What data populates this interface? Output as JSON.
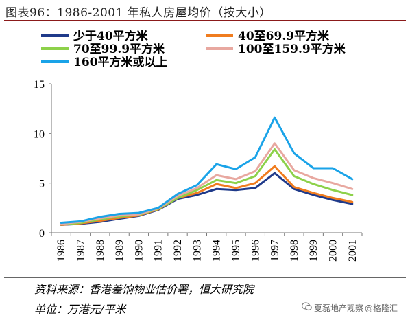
{
  "header": {
    "title": "图表96：1986-2001 年私人房屋均价（按大小）"
  },
  "footer": {
    "source": "资料来源：香港差饷物业估价署，恒大研究院",
    "unit": "单位：万港元/平米",
    "watermark_left": "夏磊地产观察",
    "watermark_right": "@格隆汇"
  },
  "icons": {
    "watermark": "wechat-icon"
  },
  "chart_data": {
    "type": "line",
    "title": "",
    "xlabel": "",
    "ylabel": "",
    "ylim": [
      0,
      15
    ],
    "yticks": [
      0,
      5,
      10,
      15
    ],
    "grid": false,
    "legend_position": "top",
    "x": [
      "1986",
      "1987",
      "1988",
      "1989",
      "1990",
      "1991",
      "1992",
      "1993",
      "1994",
      "1995",
      "1996",
      "1997",
      "1998",
      "1999",
      "2000",
      "2001"
    ],
    "series": [
      {
        "name": "少于40平方米",
        "color": "#1f3a8a",
        "values": [
          0.8,
          0.9,
          1.1,
          1.4,
          1.7,
          2.3,
          3.4,
          3.8,
          4.4,
          4.3,
          4.5,
          6.0,
          4.4,
          3.8,
          3.3,
          2.9
        ]
      },
      {
        "name": "40至69.9平方米",
        "color": "#f07c1f",
        "values": [
          0.8,
          0.95,
          1.2,
          1.5,
          1.75,
          2.35,
          3.5,
          4.0,
          4.9,
          4.5,
          5.0,
          6.7,
          4.6,
          4.0,
          3.5,
          3.1
        ]
      },
      {
        "name": "70至99.9平方米",
        "color": "#8dd14a",
        "values": [
          0.85,
          1.0,
          1.35,
          1.65,
          1.8,
          2.4,
          3.5,
          4.3,
          5.3,
          5.0,
          5.7,
          8.4,
          5.7,
          4.9,
          4.3,
          3.8
        ]
      },
      {
        "name": "100至159.9平方米",
        "color": "#e8a8a0",
        "values": [
          0.9,
          1.1,
          1.45,
          1.75,
          1.85,
          2.45,
          3.7,
          4.5,
          5.8,
          5.4,
          6.2,
          9.0,
          6.3,
          5.5,
          5.0,
          4.4
        ]
      },
      {
        "name": "160平方米或以上",
        "color": "#1aa3e8",
        "values": [
          1.0,
          1.15,
          1.6,
          1.9,
          2.0,
          2.5,
          3.9,
          4.8,
          6.9,
          6.4,
          7.6,
          11.6,
          8.0,
          6.5,
          6.5,
          5.4
        ]
      }
    ]
  }
}
